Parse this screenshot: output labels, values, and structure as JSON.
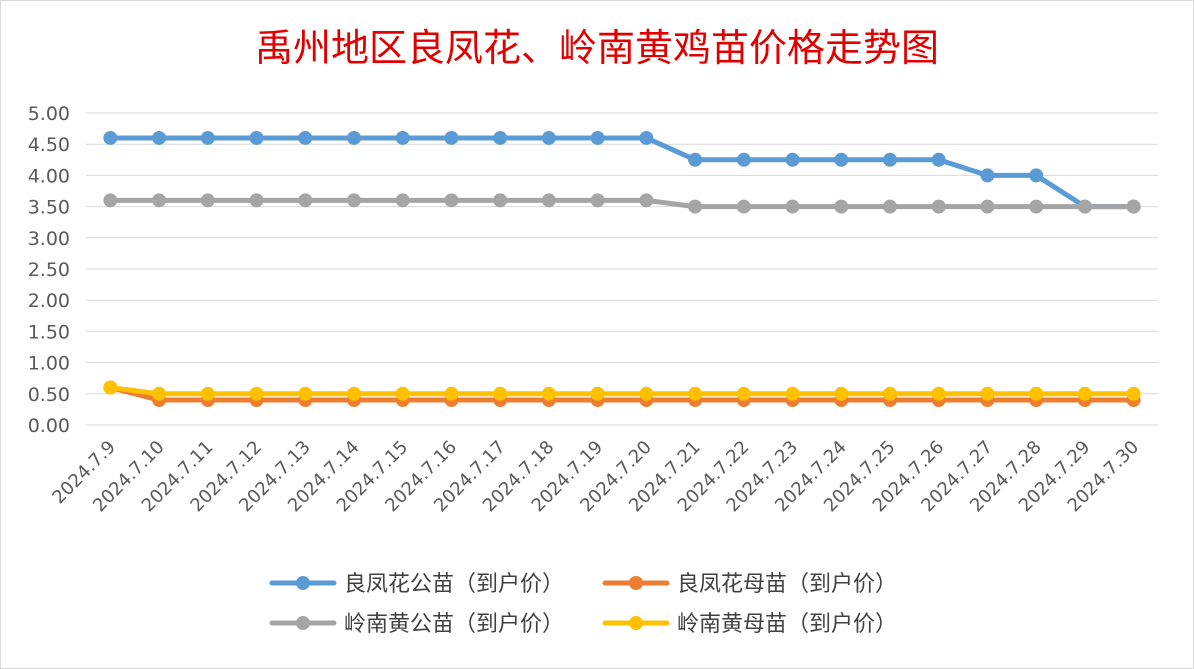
{
  "chart_data": {
    "type": "line",
    "title": "禹州地区良凤花、岭南黄鸡苗价格走势图",
    "categories": [
      "2024.7.9",
      "2024.7.10",
      "2024.7.11",
      "2024.7.12",
      "2024.7.13",
      "2024.7.14",
      "2024.7.15",
      "2024.7.16",
      "2024.7.17",
      "2024.7.18",
      "2024.7.19",
      "2024.7.20",
      "2024.7.21",
      "2024.7.22",
      "2024.7.23",
      "2024.7.24",
      "2024.7.25",
      "2024.7.26",
      "2024.7.27",
      "2024.7.28",
      "2024.7.29",
      "2024.7.30"
    ],
    "ylim": [
      0,
      5
    ],
    "yticks": [
      "0.00",
      "0.50",
      "1.00",
      "1.50",
      "2.00",
      "2.50",
      "3.00",
      "3.50",
      "4.00",
      "4.50",
      "5.00"
    ],
    "grid": true,
    "legend_position": "bottom",
    "series": [
      {
        "name": "良凤花公苗（到户价）",
        "color": "#5b9bd5",
        "values": [
          4.6,
          4.6,
          4.6,
          4.6,
          4.6,
          4.6,
          4.6,
          4.6,
          4.6,
          4.6,
          4.6,
          4.6,
          4.25,
          4.25,
          4.25,
          4.25,
          4.25,
          4.25,
          4.0,
          4.0,
          3.5,
          3.5
        ]
      },
      {
        "name": "良凤花母苗（到户价）",
        "color": "#ed7d31",
        "values": [
          0.6,
          0.4,
          0.4,
          0.4,
          0.4,
          0.4,
          0.4,
          0.4,
          0.4,
          0.4,
          0.4,
          0.4,
          0.4,
          0.4,
          0.4,
          0.4,
          0.4,
          0.4,
          0.4,
          0.4,
          0.4,
          0.4
        ]
      },
      {
        "name": "岭南黄公苗（到户价）",
        "color": "#a5a5a5",
        "values": [
          3.6,
          3.6,
          3.6,
          3.6,
          3.6,
          3.6,
          3.6,
          3.6,
          3.6,
          3.6,
          3.6,
          3.6,
          3.5,
          3.5,
          3.5,
          3.5,
          3.5,
          3.5,
          3.5,
          3.5,
          3.5,
          3.5
        ]
      },
      {
        "name": "岭南黄母苗（到户价）",
        "color": "#ffc000",
        "values": [
          0.6,
          0.5,
          0.5,
          0.5,
          0.5,
          0.5,
          0.5,
          0.5,
          0.5,
          0.5,
          0.5,
          0.5,
          0.5,
          0.5,
          0.5,
          0.5,
          0.5,
          0.5,
          0.5,
          0.5,
          0.5,
          0.5
        ]
      }
    ]
  }
}
